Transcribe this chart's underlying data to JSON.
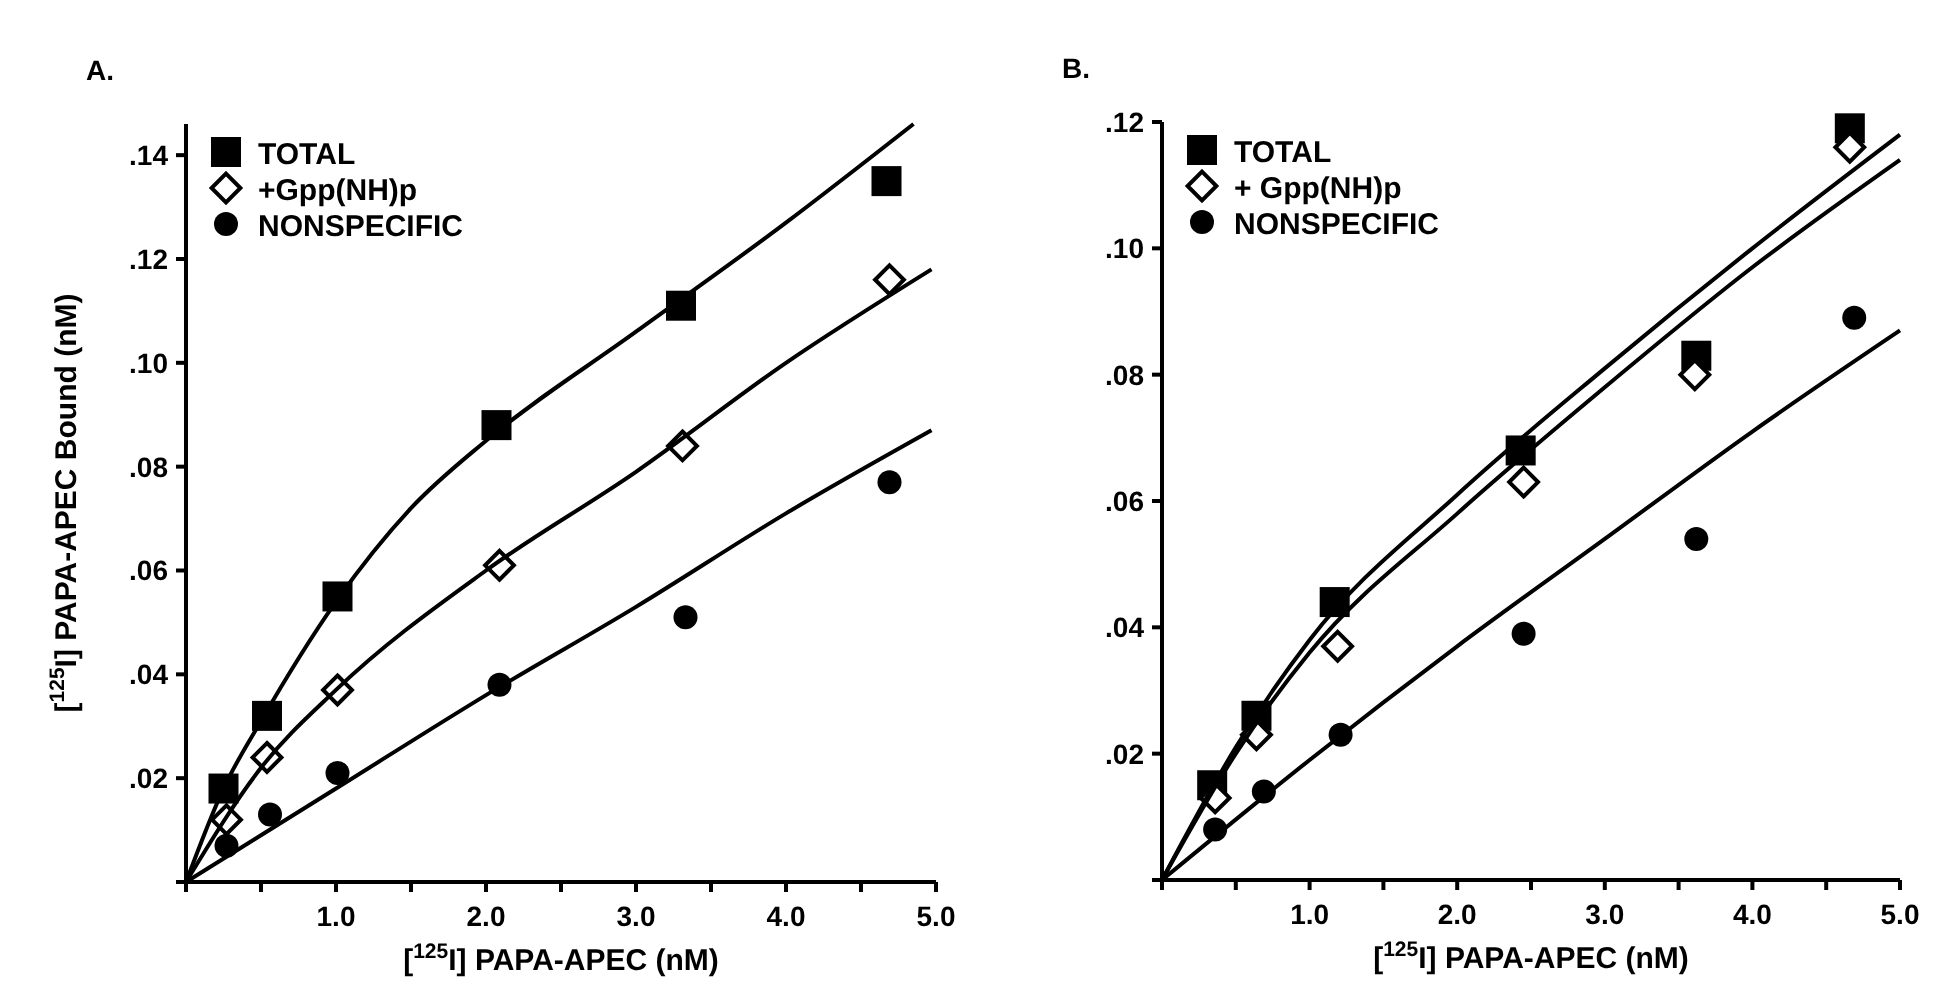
{
  "chart_data": [
    {
      "type": "scatter",
      "title": "A.",
      "xlabel": "[$^{125}$I] PAPA-APEC (nM)",
      "ylabel": "[$^{125}$I] PAPA-APEC Bound (nM)",
      "xlim": [
        0,
        5
      ],
      "ylim": [
        0,
        0.146
      ],
      "xticks": [
        {
          "value": 0,
          "label": null
        },
        {
          "value": 0.5,
          "label": null
        },
        {
          "value": 1,
          "label": "1.0"
        },
        {
          "value": 1.5,
          "label": null
        },
        {
          "value": 2,
          "label": "2.0"
        },
        {
          "value": 2.5,
          "label": null
        },
        {
          "value": 3,
          "label": "3.0"
        },
        {
          "value": 3.5,
          "label": null
        },
        {
          "value": 4,
          "label": "4.0"
        },
        {
          "value": 4.5,
          "label": null
        },
        {
          "value": 5,
          "label": "5.0"
        }
      ],
      "yticks": [
        {
          "value": 0,
          "label": null
        },
        {
          "value": 0.02,
          "label": ".02"
        },
        {
          "value": 0.04,
          "label": ".04"
        },
        {
          "value": 0.06,
          "label": ".06"
        },
        {
          "value": 0.08,
          "label": ".08"
        },
        {
          "value": 0.1,
          "label": ".10"
        },
        {
          "value": 0.12,
          "label": ".12"
        },
        {
          "value": 0.14,
          "label": ".14"
        }
      ],
      "legend": "top left",
      "series": [
        {
          "name": "TOTAL",
          "color": "#000000",
          "marker": "square",
          "x": [
            0.25,
            0.54,
            1.01,
            2.07,
            3.3,
            4.67
          ],
          "values": [
            0.018,
            0.032,
            0.055,
            0.088,
            0.111,
            0.135
          ]
        },
        {
          "name": "+Gpp(NH)p",
          "color": "#000000",
          "marker": "diamond",
          "x": [
            0.27,
            0.54,
            1.01,
            2.09,
            3.31,
            4.69
          ],
          "values": [
            0.012,
            0.024,
            0.037,
            0.061,
            0.084,
            0.116
          ]
        },
        {
          "name": "NONSPECIFIC",
          "color": "#000000",
          "marker": "circle",
          "x": [
            0.27,
            0.56,
            1.01,
            2.09,
            3.33,
            4.69
          ],
          "values": [
            0.007,
            0.013,
            0.021,
            0.038,
            0.051,
            0.077
          ]
        },
        {
          "type": "line",
          "color": "#000000",
          "marker": "none",
          "x": [
            0,
            0.25,
            0.5,
            1,
            1.5,
            2,
            3,
            4,
            4.85
          ],
          "values": [
            0,
            0.018,
            0.031,
            0.054,
            0.072,
            0.085,
            0.106,
            0.127,
            0.146
          ]
        },
        {
          "type": "line",
          "color": "#000000",
          "marker": "none",
          "x": [
            0,
            0.5,
            1,
            2,
            3,
            4,
            4.97
          ],
          "values": [
            0,
            0.022,
            0.037,
            0.06,
            0.079,
            0.1,
            0.118
          ]
        },
        {
          "type": "line",
          "color": "#000000",
          "marker": "none",
          "x": [
            0,
            1,
            2,
            3,
            4,
            4.97
          ],
          "values": [
            0,
            0.018,
            0.036,
            0.053,
            0.071,
            0.087
          ]
        }
      ]
    },
    {
      "type": "scatter",
      "title": "B.",
      "xlabel": "[$^{125}$I] PAPA-APEC (nM)",
      "xlim": [
        0,
        5
      ],
      "ylim": [
        0,
        0.12
      ],
      "xticks": [
        {
          "value": 0,
          "label": null
        },
        {
          "value": 0.5,
          "label": null
        },
        {
          "value": 1,
          "label": "1.0"
        },
        {
          "value": 1.5,
          "label": null
        },
        {
          "value": 2,
          "label": "2.0"
        },
        {
          "value": 2.5,
          "label": null
        },
        {
          "value": 3,
          "label": "3.0"
        },
        {
          "value": 3.5,
          "label": null
        },
        {
          "value": 4,
          "label": "4.0"
        },
        {
          "value": 4.5,
          "label": null
        },
        {
          "value": 5,
          "label": "5.0"
        }
      ],
      "yticks": [
        {
          "value": 0,
          "label": null
        },
        {
          "value": 0.02,
          "label": ".02"
        },
        {
          "value": 0.04,
          "label": ".04"
        },
        {
          "value": 0.06,
          "label": ".06"
        },
        {
          "value": 0.08,
          "label": ".08"
        },
        {
          "value": 0.1,
          "label": ".10"
        },
        {
          "value": 0.12,
          "label": ".12"
        }
      ],
      "legend": "top left",
      "series": [
        {
          "name": "TOTAL",
          "color": "#000000",
          "marker": "square",
          "x": [
            0.34,
            0.64,
            1.17,
            2.43,
            3.62,
            4.66
          ],
          "values": [
            0.015,
            0.026,
            0.044,
            0.068,
            0.083,
            0.119
          ]
        },
        {
          "name": "+ Gpp(NH)p",
          "color": "#000000",
          "marker": "diamond",
          "x": [
            0.36,
            0.64,
            1.19,
            2.45,
            3.61,
            4.66
          ],
          "values": [
            0.013,
            0.023,
            0.037,
            0.063,
            0.08,
            0.116
          ]
        },
        {
          "name": "NONSPECIFIC",
          "color": "#000000",
          "marker": "circle",
          "x": [
            0.36,
            0.69,
            1.21,
            2.45,
            3.62,
            4.69
          ],
          "values": [
            0.008,
            0.014,
            0.023,
            0.039,
            0.054,
            0.089
          ]
        },
        {
          "type": "line",
          "color": "#000000",
          "marker": "none",
          "x": [
            0,
            0.5,
            1,
            2,
            3,
            4,
            5
          ],
          "values": [
            0,
            0.021,
            0.038,
            0.061,
            0.081,
            0.1,
            0.118
          ]
        },
        {
          "type": "line",
          "color": "#000000",
          "marker": "none",
          "x": [
            0,
            0.5,
            1,
            2,
            3,
            4,
            5
          ],
          "values": [
            0,
            0.02,
            0.036,
            0.058,
            0.078,
            0.097,
            0.114
          ]
        },
        {
          "type": "line",
          "color": "#000000",
          "marker": "none",
          "x": [
            0,
            1,
            2,
            3,
            4,
            5
          ],
          "values": [
            0,
            0.019,
            0.037,
            0.054,
            0.071,
            0.087
          ]
        }
      ]
    }
  ]
}
